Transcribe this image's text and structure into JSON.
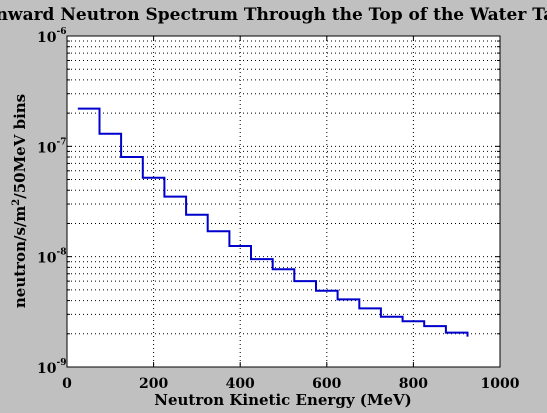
{
  "chart_data": {
    "type": "line",
    "step": true,
    "title": "Inward Neutron Spectrum Through the Top of the Water Tank",
    "xlabel": "Neutron Kinetic Energy (MeV)",
    "ylabel": "neutron/s/m²/50MeV bins",
    "ylabel_parts": {
      "before": "neutron/s/m",
      "superscript": "2",
      "after": "/50MeV bins"
    },
    "xlim": [
      0,
      1000
    ],
    "ylim": [
      1e-09,
      1e-06
    ],
    "yscale": "log",
    "grid": true,
    "x_ticks": [
      "0",
      "200",
      "400",
      "600",
      "800",
      "1000"
    ],
    "y_ticks": [
      {
        "base": "10",
        "exponent": "-9"
      },
      {
        "base": "10",
        "exponent": "-8"
      },
      {
        "base": "10",
        "exponent": "-7"
      },
      {
        "base": "10",
        "exponent": "-6"
      }
    ],
    "series": [
      {
        "color": "#0000cc",
        "bin_edges": [
          25,
          75,
          125,
          175,
          225,
          275,
          325,
          375,
          425,
          475,
          525,
          575,
          625,
          675,
          725,
          775,
          825,
          875,
          925
        ],
        "values": [
          2.2e-07,
          1.3e-07,
          8e-08,
          5.2e-08,
          3.5e-08,
          2.4e-08,
          1.7e-08,
          1.25e-08,
          9.5e-09,
          7.7e-09,
          6e-09,
          4.9e-09,
          4.1e-09,
          3.4e-09,
          2.85e-09,
          2.6e-09,
          2.35e-09,
          2.05e-09
        ]
      }
    ]
  }
}
